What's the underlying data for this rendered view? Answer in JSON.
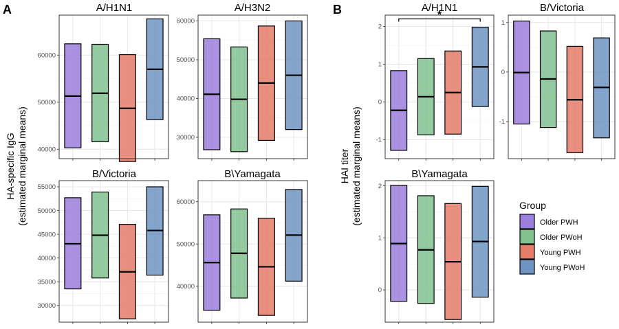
{
  "panel_labels": {
    "a": "A",
    "b": "B"
  },
  "panel_a": {
    "ylabel_line1": "HA-specific IgG",
    "ylabel_line2": "(estimated marginal means)"
  },
  "panel_b": {
    "ylabel_line1": "HAI titer",
    "ylabel_line2": "(estimated marginal means)"
  },
  "legend": {
    "title": "Group",
    "items": [
      {
        "label": "Older PWH",
        "color": "#9b7fdc"
      },
      {
        "label": "Older PWoH",
        "color": "#80c18e"
      },
      {
        "label": "Young PWH",
        "color": "#e37c69"
      },
      {
        "label": "Young PWoH",
        "color": "#6f94c2"
      }
    ]
  },
  "colors": {
    "Older PWH": "#9b7fdc",
    "Older PWoH": "#80c18e",
    "Young PWH": "#e37c69",
    "Young PWoH": "#6f94c2",
    "grid": "#e6e6e6",
    "panel_border": "#333333"
  },
  "chart_data": [
    {
      "type": "crossbar",
      "panel": "A",
      "title": "A/H1N1",
      "ylim": [
        38000,
        68500
      ],
      "yticks": [
        40000,
        50000,
        60000
      ],
      "ytick_labels": [
        "40000",
        "50000",
        "60000"
      ],
      "groups": [
        {
          "name": "Older PWH",
          "lower": 40300,
          "mean": 51300,
          "upper": 62400
        },
        {
          "name": "Older PWoH",
          "lower": 41600,
          "mean": 51900,
          "upper": 62300
        },
        {
          "name": "Young PWH",
          "lower": 37400,
          "mean": 48700,
          "upper": 60100
        },
        {
          "name": "Young PWoH",
          "lower": 46300,
          "mean": 57000,
          "upper": 67700
        }
      ]
    },
    {
      "type": "crossbar",
      "panel": "A",
      "title": "A/H3N2",
      "ylim": [
        24500,
        61500
      ],
      "yticks": [
        30000,
        40000,
        50000,
        60000
      ],
      "ytick_labels": [
        "30000",
        "40000",
        "50000",
        "60000"
      ],
      "groups": [
        {
          "name": "Older PWH",
          "lower": 26800,
          "mean": 41100,
          "upper": 55400
        },
        {
          "name": "Older PWoH",
          "lower": 26300,
          "mean": 39800,
          "upper": 53300
        },
        {
          "name": "Young PWH",
          "lower": 29200,
          "mean": 44000,
          "upper": 58700
        },
        {
          "name": "Young PWoH",
          "lower": 32000,
          "mean": 46000,
          "upper": 60000
        }
      ]
    },
    {
      "type": "crossbar",
      "panel": "A",
      "title": "B/Victoria",
      "ylim": [
        26500,
        56300
      ],
      "yticks": [
        30000,
        35000,
        40000,
        45000,
        50000,
        55000
      ],
      "ytick_labels": [
        "30000",
        "35000",
        "40000",
        "45000",
        "50000",
        "55000"
      ],
      "groups": [
        {
          "name": "Older PWH",
          "lower": 33500,
          "mean": 43000,
          "upper": 52700
        },
        {
          "name": "Older PWoH",
          "lower": 35800,
          "mean": 44800,
          "upper": 53900
        },
        {
          "name": "Young PWH",
          "lower": 27200,
          "mean": 37100,
          "upper": 47100
        },
        {
          "name": "Young PWoH",
          "lower": 36400,
          "mean": 45800,
          "upper": 55000
        }
      ]
    },
    {
      "type": "crossbar",
      "panel": "A",
      "title": "B\\Yamagata",
      "ylim": [
        31500,
        65000
      ],
      "yticks": [
        40000,
        50000,
        60000
      ],
      "ytick_labels": [
        "40000",
        "50000",
        "60000"
      ],
      "groups": [
        {
          "name": "Older PWH",
          "lower": 34300,
          "mean": 45600,
          "upper": 56900
        },
        {
          "name": "Older PWoH",
          "lower": 37200,
          "mean": 47800,
          "upper": 58300
        },
        {
          "name": "Young PWH",
          "lower": 33100,
          "mean": 44600,
          "upper": 56100
        },
        {
          "name": "Young PWoH",
          "lower": 41200,
          "mean": 52100,
          "upper": 62900
        }
      ]
    },
    {
      "type": "crossbar",
      "panel": "B",
      "title": "A/H1N1",
      "ylim": [
        -1.5,
        2.3
      ],
      "yticks": [
        -1,
        0,
        1,
        2
      ],
      "ytick_labels": [
        "-1",
        "0",
        "1",
        "2"
      ],
      "groups": [
        {
          "name": "Older PWH",
          "lower": -1.28,
          "mean": -0.22,
          "upper": 0.83
        },
        {
          "name": "Older PWoH",
          "lower": -0.87,
          "mean": 0.14,
          "upper": 1.15
        },
        {
          "name": "Young PWH",
          "lower": -0.85,
          "mean": 0.25,
          "upper": 1.35
        },
        {
          "name": "Young PWoH",
          "lower": -0.12,
          "mean": 0.93,
          "upper": 1.98
        }
      ],
      "significance": {
        "from": 0,
        "to": 3,
        "y": 2.2,
        "label": "*"
      }
    },
    {
      "type": "crossbar",
      "panel": "B",
      "title": "B/Victoria",
      "ylim": [
        -1.75,
        1.15
      ],
      "yticks": [
        -1,
        0,
        1
      ],
      "ytick_labels": [
        "-1",
        "0",
        "1"
      ],
      "groups": [
        {
          "name": "Older PWH",
          "lower": -1.05,
          "mean": -0.01,
          "upper": 1.03
        },
        {
          "name": "Older PWoH",
          "lower": -1.12,
          "mean": -0.14,
          "upper": 0.83
        },
        {
          "name": "Young PWH",
          "lower": -1.63,
          "mean": -0.56,
          "upper": 0.52
        },
        {
          "name": "Young PWoH",
          "lower": -1.33,
          "mean": -0.31,
          "upper": 0.69
        }
      ]
    },
    {
      "type": "crossbar",
      "panel": "B",
      "title": "B\\Yamagata",
      "ylim": [
        -0.62,
        2.1
      ],
      "yticks": [
        0,
        1,
        2
      ],
      "ytick_labels": [
        "0",
        "1",
        "2"
      ],
      "groups": [
        {
          "name": "Older PWH",
          "lower": -0.22,
          "mean": 0.89,
          "upper": 2.01
        },
        {
          "name": "Older PWoH",
          "lower": -0.26,
          "mean": 0.77,
          "upper": 1.81
        },
        {
          "name": "Young PWH",
          "lower": -0.57,
          "mean": 0.54,
          "upper": 1.66
        },
        {
          "name": "Young PWoH",
          "lower": -0.14,
          "mean": 0.93,
          "upper": 1.99
        }
      ]
    }
  ]
}
